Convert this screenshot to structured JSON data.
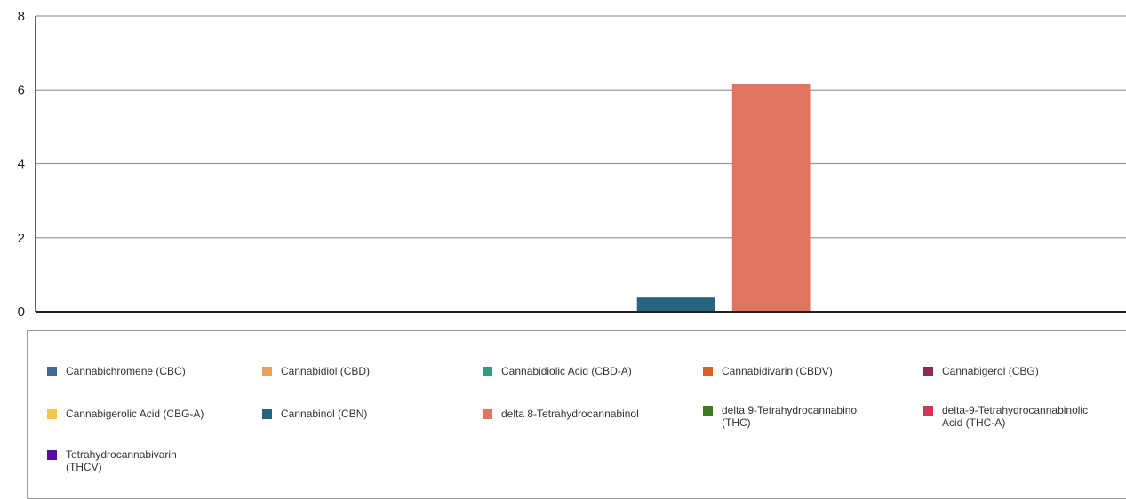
{
  "chart_data": {
    "type": "bar",
    "title": "",
    "xlabel": "",
    "ylabel": "",
    "ylim": [
      0,
      8
    ],
    "yticks": [
      "0",
      "2",
      "4",
      "6",
      "8"
    ],
    "grid": true,
    "legend_position": "bottom",
    "series": [
      {
        "name": "Cannabichromene (CBC)",
        "value": 0,
        "color": "#3f6a94"
      },
      {
        "name": "Cannabidiol (CBD)",
        "value": 0,
        "color": "#e8a05a"
      },
      {
        "name": "Cannabidiolic Acid (CBD-A)",
        "value": 0,
        "color": "#2e9c7e"
      },
      {
        "name": "Cannabidivarin (CBDV)",
        "value": 0,
        "color": "#d6622a"
      },
      {
        "name": "Cannabigerol (CBG)",
        "value": 0,
        "color": "#8a2a58"
      },
      {
        "name": "Cannabigerolic Acid (CBG-A)",
        "value": 0,
        "color": "#f0c94a"
      },
      {
        "name": "Cannabinol (CBN)",
        "value": 0.38,
        "color": "#2a6380"
      },
      {
        "name": "delta 8-Tetrahydrocannabinol",
        "value": 6.15,
        "color": "#df7461"
      },
      {
        "name": "delta 9-Tetrahydrocannabinol (THC)",
        "value": 0,
        "color": "#3d7a22"
      },
      {
        "name": "delta-9-Tetrahydrocannabinolic Acid (THC-A)",
        "value": 0,
        "color": "#d2345a"
      },
      {
        "name": "Tetrahydrocannabivarin (THCV)",
        "value": 0,
        "color": "#5a0fa0"
      }
    ]
  },
  "legend": {
    "items": [
      [
        "Cannabichromene (CBC)"
      ],
      [
        "Cannabidiol (CBD)"
      ],
      [
        "Cannabidiolic Acid (CBD-A)"
      ],
      [
        "Cannabidivarin (CBDV)"
      ],
      [
        "Cannabigerol (CBG)"
      ],
      [
        "Cannabigerolic Acid (CBG-A)"
      ],
      [
        "Cannabinol (CBN)"
      ],
      [
        "delta 8-Tetrahydrocannabinol"
      ],
      [
        "delta 9-Tetrahydrocannabinol",
        "(THC)"
      ],
      [
        "delta-9-Tetrahydrocannabinolic",
        "Acid (THC-A)"
      ],
      [
        "Tetrahydrocannabivarin",
        "(THCV)"
      ]
    ]
  }
}
